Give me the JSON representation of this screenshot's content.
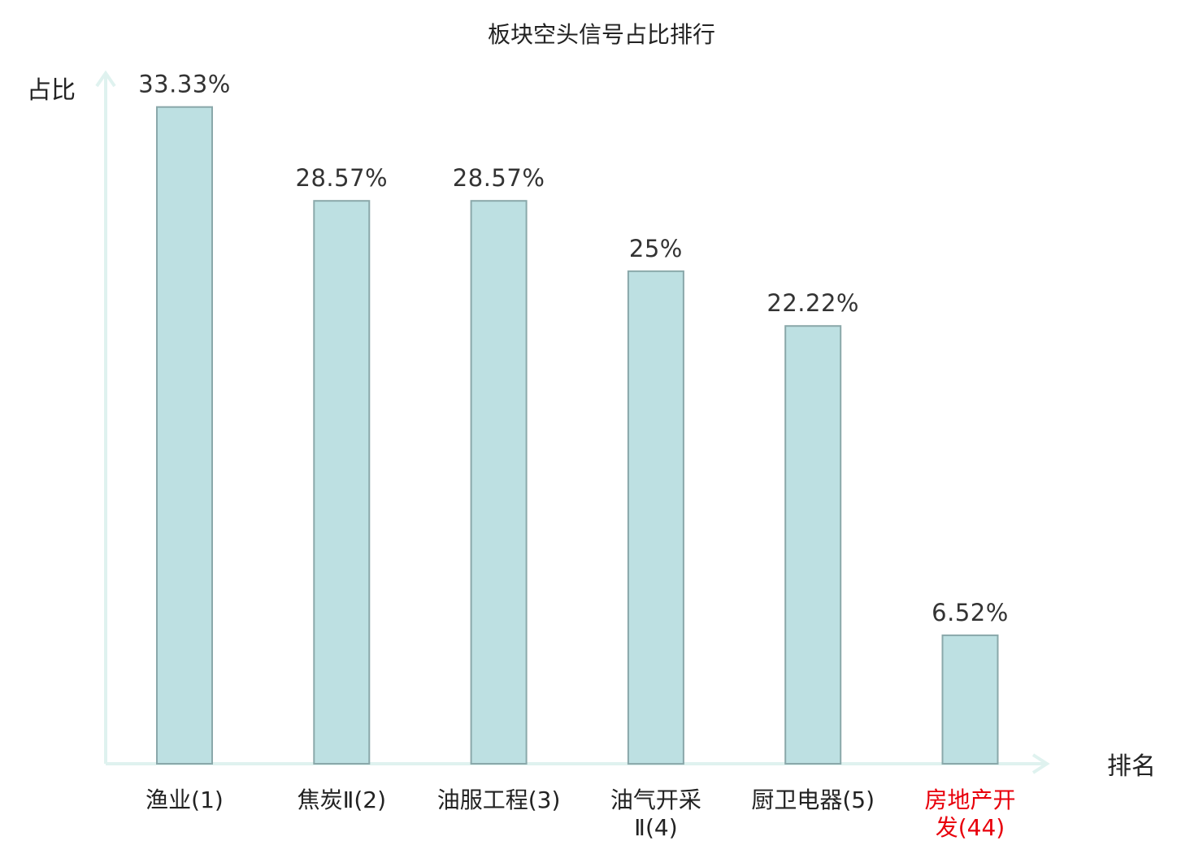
{
  "chart_data": {
    "type": "bar",
    "title": "板块空头信号占比排行",
    "ylabel": "占比",
    "xlabel": "排名",
    "categories": [
      {
        "lines": [
          "渔业(1)"
        ],
        "highlight": false
      },
      {
        "lines": [
          "焦炭Ⅱ(2)"
        ],
        "highlight": false
      },
      {
        "lines": [
          "油服工程(3)"
        ],
        "highlight": false
      },
      {
        "lines": [
          "油气开采",
          "Ⅱ(4)"
        ],
        "highlight": false
      },
      {
        "lines": [
          "厨卫电器(5)"
        ],
        "highlight": false
      },
      {
        "lines": [
          "房地产开",
          "发(44)"
        ],
        "highlight": true
      }
    ],
    "values": [
      33.33,
      28.57,
      28.57,
      25,
      22.22,
      6.52
    ],
    "value_labels": [
      "33.33%",
      "28.57%",
      "28.57%",
      "25%",
      "22.22%",
      "6.52%"
    ],
    "ylim": [
      0,
      35
    ],
    "grid": false,
    "legend": "none",
    "colors": {
      "bar_fill": "#bde0e2",
      "bar_stroke": "#8aa8aa",
      "axis": "#dff2ef",
      "text": "#222222",
      "value_text": "#333333",
      "highlight_text": "#e8000b"
    }
  }
}
